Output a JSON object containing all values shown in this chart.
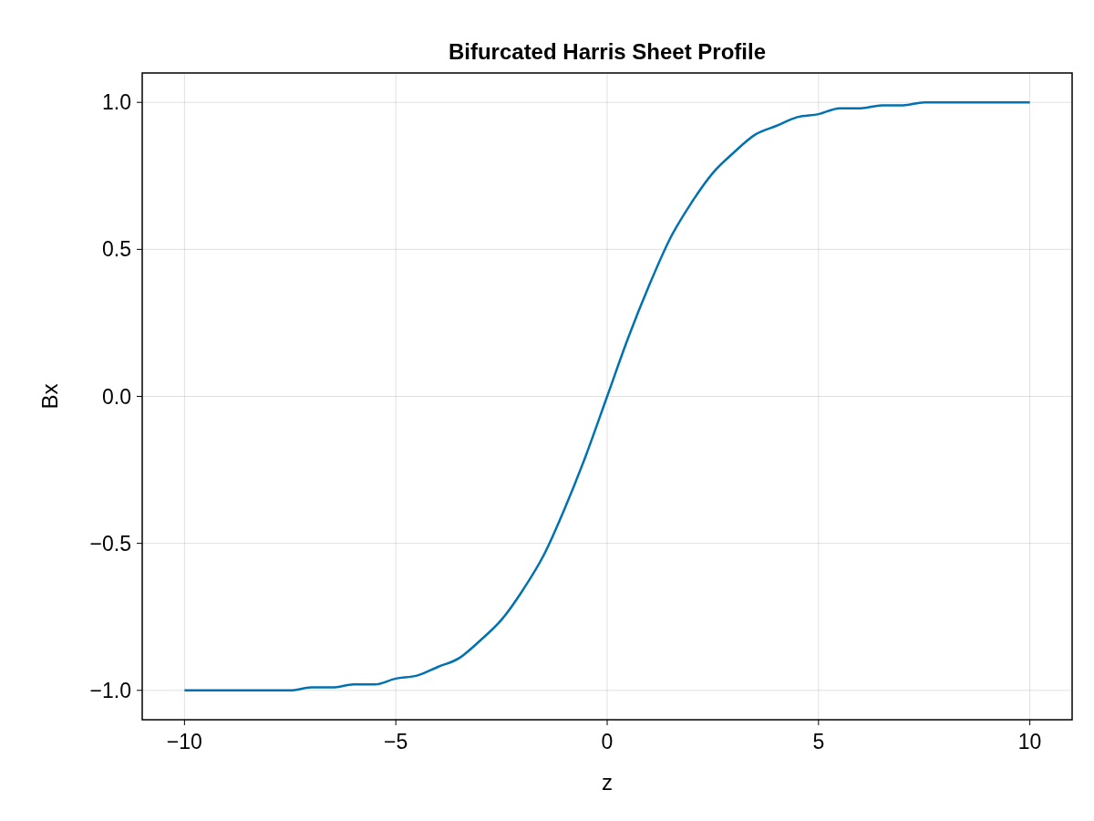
{
  "chart_data": {
    "type": "line",
    "title": "Bifurcated Harris Sheet Profile",
    "xlabel": "z",
    "ylabel": "Bx",
    "x": [
      -10,
      -9.5,
      -9,
      -8.5,
      -8,
      -7.5,
      -7,
      -6.5,
      -6,
      -5.5,
      -5,
      -4.5,
      -4,
      -3.5,
      -3,
      -2.5,
      -2,
      -1.5,
      -1,
      -0.5,
      0,
      0.5,
      1,
      1.5,
      2,
      2.5,
      3,
      3.5,
      4,
      4.5,
      5,
      5.5,
      6,
      6.5,
      7,
      7.5,
      8,
      8.5,
      9,
      9.5,
      10
    ],
    "series": [
      {
        "color": "#0072b2",
        "values": [
          -1.0,
          -1.0,
          -1.0,
          -1.0,
          -1.0,
          -1.0,
          -0.99,
          -0.99,
          -0.98,
          -0.98,
          -0.96,
          -0.95,
          -0.92,
          -0.89,
          -0.83,
          -0.76,
          -0.66,
          -0.54,
          -0.38,
          -0.2,
          0,
          0.2,
          0.38,
          0.54,
          0.66,
          0.76,
          0.83,
          0.89,
          0.92,
          0.95,
          0.96,
          0.98,
          0.98,
          0.99,
          0.99,
          1.0,
          1.0,
          1.0,
          1.0,
          1.0,
          1.0
        ]
      }
    ],
    "xlim": [
      -11,
      11
    ],
    "ylim": [
      -1.1,
      1.1
    ],
    "xticks": [
      {
        "value": -10,
        "label": "−10"
      },
      {
        "value": -5,
        "label": "−5"
      },
      0,
      5,
      10
    ],
    "yticks": [
      {
        "value": -1,
        "label": "−1.0"
      },
      {
        "value": -0.5,
        "label": "−0.5"
      },
      {
        "value": 0,
        "label": "0.0"
      },
      {
        "value": 0.5,
        "label": "0.5"
      },
      {
        "value": 1,
        "label": "1.0"
      }
    ],
    "grid": true
  }
}
